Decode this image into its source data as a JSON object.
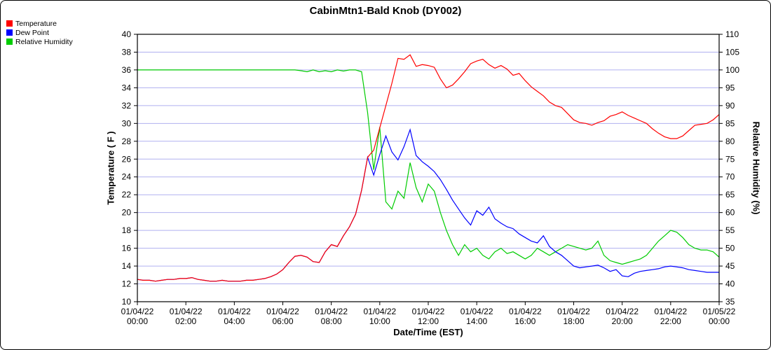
{
  "window": {
    "title": "CabinMtn1-Bald Knob (DY002)"
  },
  "legend": {
    "items": [
      {
        "label": "Temperature",
        "color": "#ff0000"
      },
      {
        "label": "Dew Point",
        "color": "#0000ff"
      },
      {
        "label": "Relative Humidity",
        "color": "#00cc00"
      }
    ]
  },
  "axes": {
    "left_title": "Temperature ( F )",
    "right_title": "Relative Humidity (%)",
    "x_title": "Date/Time (EST)"
  },
  "chart_data": {
    "type": "line",
    "title": "CabinMtn1-Bald Knob (DY002)",
    "xlabel": "Date/Time (EST)",
    "ylabel": "Temperature ( F )",
    "ylabel_right": "Relative Humidity (%)",
    "grid_color": "#b0b0f0",
    "frame_color": "#000000",
    "x_start_hour": 0,
    "x_end_hour": 24,
    "x_step_hours": 0.25,
    "y_left": {
      "min": 10,
      "max": 40,
      "step": 2
    },
    "y_right": {
      "min": 35,
      "max": 110,
      "step": 5
    },
    "x_ticks": [
      {
        "hour": 0,
        "line1": "01/04/22",
        "line2": "00:00"
      },
      {
        "hour": 2,
        "line1": "01/04/22",
        "line2": "02:00"
      },
      {
        "hour": 4,
        "line1": "01/04/22",
        "line2": "04:00"
      },
      {
        "hour": 6,
        "line1": "01/04/22",
        "line2": "06:00"
      },
      {
        "hour": 8,
        "line1": "01/04/22",
        "line2": "08:00"
      },
      {
        "hour": 10,
        "line1": "01/04/22",
        "line2": "10:00"
      },
      {
        "hour": 12,
        "line1": "01/04/22",
        "line2": "12:00"
      },
      {
        "hour": 14,
        "line1": "01/04/22",
        "line2": "14:00"
      },
      {
        "hour": 16,
        "line1": "01/04/22",
        "line2": "16:00"
      },
      {
        "hour": 18,
        "line1": "01/04/22",
        "line2": "18:00"
      },
      {
        "hour": 20,
        "line1": "01/04/22",
        "line2": "20:00"
      },
      {
        "hour": 22,
        "line1": "01/04/22",
        "line2": "22:00"
      },
      {
        "hour": 24,
        "line1": "01/05/22",
        "line2": "00:00"
      }
    ],
    "series": [
      {
        "name": "Relative Humidity",
        "axis": "right",
        "color": "#00cc00",
        "values": [
          100,
          100,
          100,
          100,
          100,
          100,
          100,
          100,
          100,
          100,
          100,
          100,
          100,
          100,
          100,
          100,
          100,
          100,
          100,
          100,
          100,
          100,
          100,
          100,
          100,
          100,
          100,
          99.8,
          99.5,
          100,
          99.5,
          99.8,
          99.5,
          100,
          99.7,
          100,
          100,
          99.5,
          88,
          72,
          84,
          63,
          61,
          66,
          64,
          74,
          67,
          63,
          68,
          66,
          60,
          55,
          51,
          48,
          51,
          49,
          50,
          48,
          47,
          49,
          50,
          48.5,
          49,
          48,
          47,
          48,
          50,
          49,
          48,
          49,
          50,
          51,
          50.5,
          50,
          49.5,
          50,
          52,
          48,
          46.5,
          46,
          45.5,
          46,
          46.5,
          47,
          48,
          50,
          52,
          53.5,
          55,
          54.5,
          53,
          51,
          50,
          49.5,
          49.5,
          49,
          47.5
        ]
      },
      {
        "name": "Dew Point",
        "axis": "left",
        "color": "#0000ff",
        "values": [
          12.5,
          12.4,
          12.4,
          12.3,
          12.4,
          12.5,
          12.5,
          12.6,
          12.6,
          12.7,
          12.5,
          12.4,
          12.3,
          12.3,
          12.4,
          12.3,
          12.3,
          12.3,
          12.4,
          12.4,
          12.5,
          12.6,
          12.8,
          13.1,
          13.6,
          14.4,
          15.1,
          15.2,
          15.0,
          14.5,
          14.4,
          15.6,
          16.4,
          16.2,
          17.4,
          18.4,
          19.8,
          22.5,
          26.2,
          24.2,
          26.5,
          28.6,
          26.8,
          25.9,
          27.4,
          29.3,
          26.4,
          25.7,
          25.2,
          24.6,
          23.7,
          22.6,
          21.4,
          20.4,
          19.4,
          18.6,
          20.2,
          19.7,
          20.6,
          19.3,
          18.8,
          18.4,
          18.2,
          17.6,
          17.2,
          16.8,
          16.6,
          17.4,
          16.2,
          15.6,
          15.2,
          14.6,
          14.0,
          13.8,
          13.9,
          14.0,
          14.1,
          13.8,
          13.4,
          13.6,
          12.9,
          12.8,
          13.2,
          13.4,
          13.5,
          13.6,
          13.7,
          13.9,
          14.0,
          13.9,
          13.8,
          13.6,
          13.5,
          13.4,
          13.3,
          13.3,
          13.3
        ]
      },
      {
        "name": "Temperature",
        "axis": "left",
        "color": "#ff0000",
        "values": [
          12.5,
          12.4,
          12.4,
          12.3,
          12.4,
          12.5,
          12.5,
          12.6,
          12.6,
          12.7,
          12.5,
          12.4,
          12.3,
          12.3,
          12.4,
          12.3,
          12.3,
          12.3,
          12.4,
          12.4,
          12.5,
          12.6,
          12.8,
          13.1,
          13.6,
          14.4,
          15.1,
          15.2,
          15.0,
          14.5,
          14.4,
          15.6,
          16.4,
          16.2,
          17.4,
          18.4,
          19.8,
          22.5,
          26.2,
          27.0,
          29.5,
          32.0,
          34.5,
          37.3,
          37.2,
          37.7,
          36.4,
          36.6,
          36.5,
          36.3,
          35.0,
          34.0,
          34.3,
          35.0,
          35.8,
          36.7,
          37.0,
          37.2,
          36.6,
          36.2,
          36.5,
          36.1,
          35.4,
          35.6,
          34.8,
          34.1,
          33.6,
          33.1,
          32.4,
          32.0,
          31.8,
          31.1,
          30.4,
          30.1,
          30.0,
          29.8,
          30.1,
          30.3,
          30.8,
          31.0,
          31.3,
          30.9,
          30.6,
          30.3,
          30.0,
          29.4,
          28.9,
          28.5,
          28.3,
          28.3,
          28.6,
          29.2,
          29.8,
          29.9,
          30.0,
          30.4,
          31.0
        ]
      }
    ]
  }
}
